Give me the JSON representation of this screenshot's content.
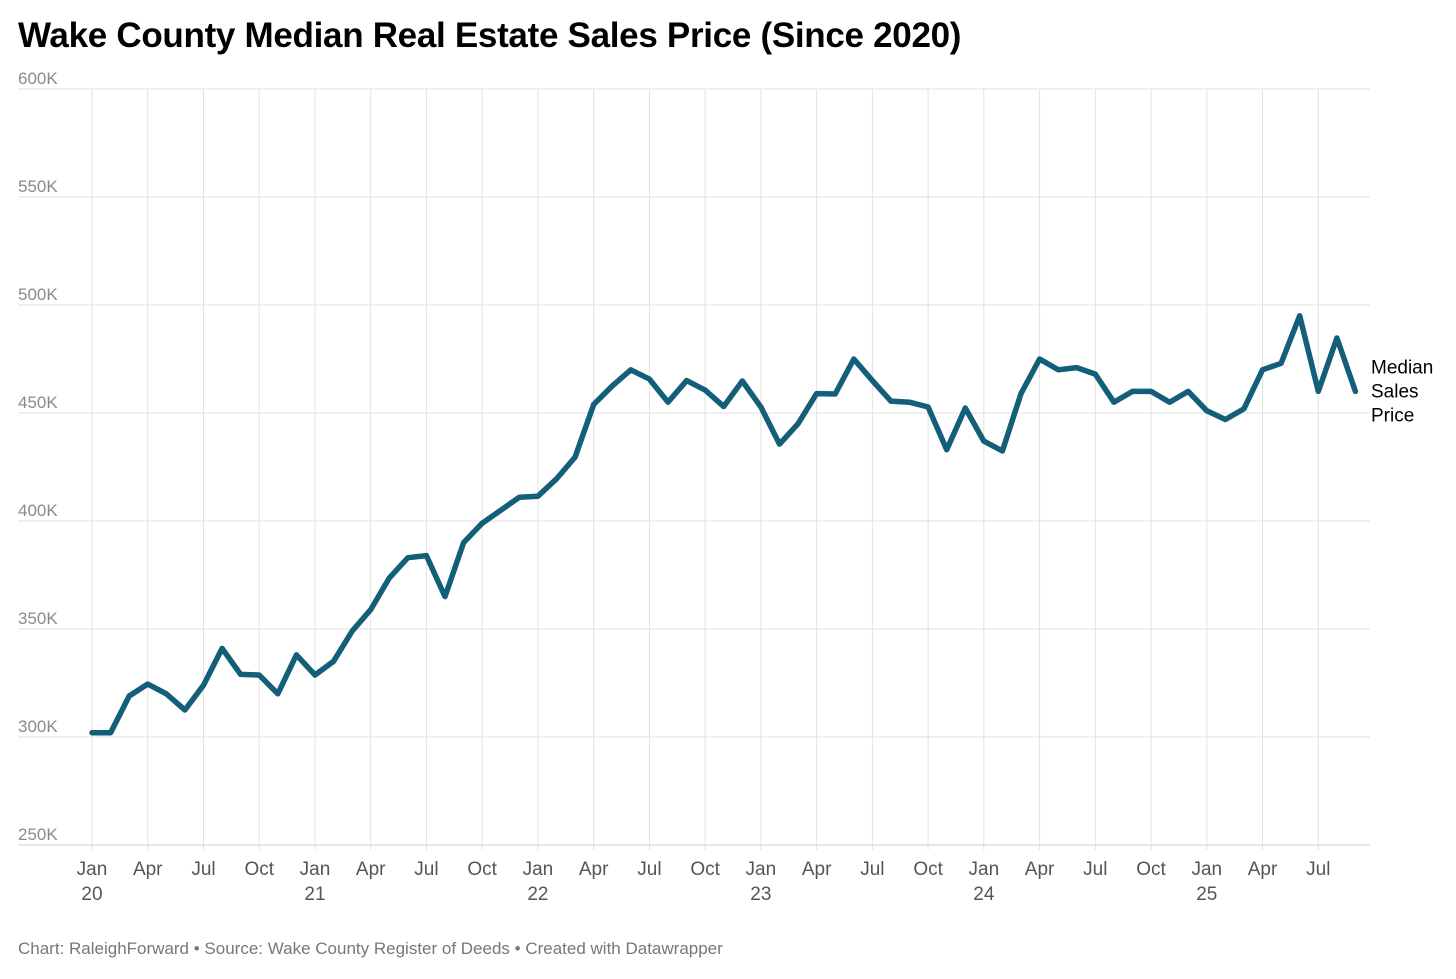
{
  "title": "Wake County Median Real Estate Sales Price (Since 2020)",
  "footer": "Chart: RaleighForward • Source: Wake County Register of Deeds • Created with Datawrapper",
  "chart_data": {
    "type": "line",
    "title": "Wake County Median Real Estate Sales Price (Since 2020)",
    "xlabel": "",
    "ylabel": "",
    "ylim": [
      250000,
      600000
    ],
    "yticks": [
      250000,
      300000,
      350000,
      400000,
      450000,
      500000,
      550000,
      600000
    ],
    "ytick_labels": [
      "250K",
      "300K",
      "350K",
      "400K",
      "450K",
      "500K",
      "550K",
      "600K"
    ],
    "x_start": "2020-01",
    "x_interval": "month",
    "xticks": [
      {
        "month_index": 0,
        "label": "Jan",
        "sub": "20"
      },
      {
        "month_index": 3,
        "label": "Apr",
        "sub": ""
      },
      {
        "month_index": 6,
        "label": "Jul",
        "sub": ""
      },
      {
        "month_index": 9,
        "label": "Oct",
        "sub": ""
      },
      {
        "month_index": 12,
        "label": "Jan",
        "sub": "21"
      },
      {
        "month_index": 15,
        "label": "Apr",
        "sub": ""
      },
      {
        "month_index": 18,
        "label": "Jul",
        "sub": ""
      },
      {
        "month_index": 21,
        "label": "Oct",
        "sub": ""
      },
      {
        "month_index": 24,
        "label": "Jan",
        "sub": "22"
      },
      {
        "month_index": 27,
        "label": "Apr",
        "sub": ""
      },
      {
        "month_index": 30,
        "label": "Jul",
        "sub": ""
      },
      {
        "month_index": 33,
        "label": "Oct",
        "sub": ""
      },
      {
        "month_index": 36,
        "label": "Jan",
        "sub": "23"
      },
      {
        "month_index": 39,
        "label": "Apr",
        "sub": ""
      },
      {
        "month_index": 42,
        "label": "Jul",
        "sub": ""
      },
      {
        "month_index": 45,
        "label": "Oct",
        "sub": ""
      },
      {
        "month_index": 48,
        "label": "Jan",
        "sub": "24"
      },
      {
        "month_index": 51,
        "label": "Apr",
        "sub": ""
      },
      {
        "month_index": 54,
        "label": "Jul",
        "sub": ""
      },
      {
        "month_index": 57,
        "label": "Oct",
        "sub": ""
      },
      {
        "month_index": 60,
        "label": "Jan",
        "sub": "25"
      },
      {
        "month_index": 63,
        "label": "Apr",
        "sub": ""
      },
      {
        "month_index": 66,
        "label": "Jul",
        "sub": ""
      }
    ],
    "grid": true,
    "series": [
      {
        "name": "Median Sales Price",
        "label_lines": [
          "Median",
          "Sales",
          "Price"
        ],
        "color": "#135e78",
        "values": [
          302000,
          302000,
          319000,
          324500,
          320000,
          312500,
          324000,
          341000,
          329000,
          328700,
          320000,
          338000,
          328700,
          335000,
          349000,
          359000,
          373600,
          383000,
          384000,
          365000,
          390000,
          399000,
          405000,
          411000,
          411500,
          419500,
          429600,
          454000,
          462500,
          470000,
          465700,
          455000,
          465000,
          460600,
          453000,
          464800,
          452800,
          435600,
          445000,
          459000,
          458800,
          475000,
          465000,
          455500,
          455000,
          452800,
          433000,
          452300,
          437000,
          432400,
          459000,
          475000,
          470000,
          471000,
          468000,
          455000,
          460000,
          460000,
          455000,
          460000,
          451000,
          447000,
          452000,
          470000,
          473000,
          495000,
          460000,
          484700,
          460000
        ]
      }
    ]
  }
}
